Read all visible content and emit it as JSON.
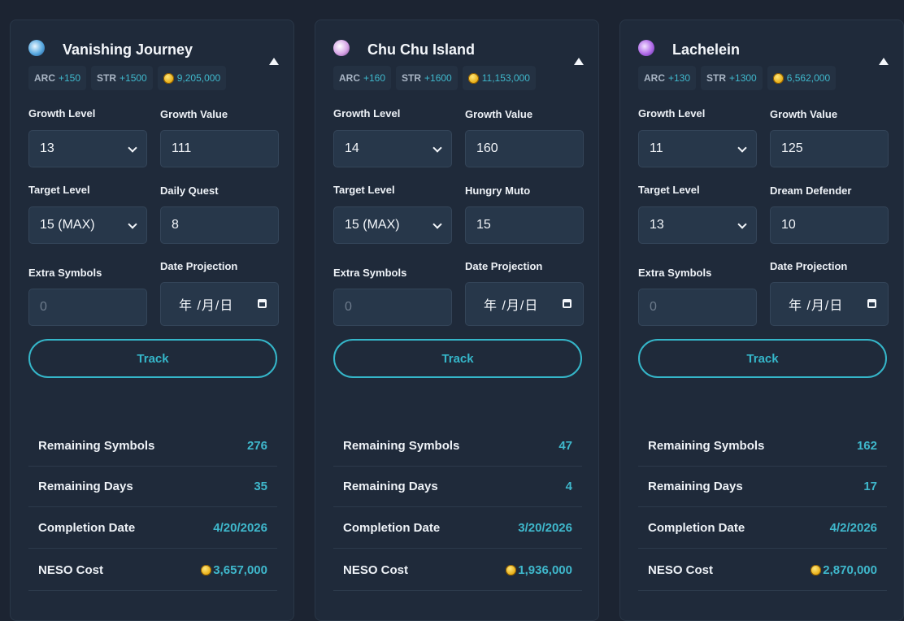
{
  "cards": [
    {
      "title": "Vanishing Journey",
      "icon": "vanishing-journey-symbol-icon",
      "arc_label": "ARC",
      "arc_value": "+150",
      "str_label": "STR",
      "str_value": "+1500",
      "meso_cost": "9,205,000",
      "growth_level_label": "Growth Level",
      "growth_level": "13",
      "growth_value_label": "Growth Value",
      "growth_value": "111",
      "target_level_label": "Target Level",
      "target_level": "15 (MAX)",
      "daily_label": "Daily Quest",
      "daily_value": "8",
      "extra_label": "Extra Symbols",
      "extra_placeholder": "0",
      "date_label": "Date Projection",
      "date_value": "年 /月/日",
      "track_label": "Track",
      "stats": [
        {
          "label": "Remaining Symbols",
          "value": "276"
        },
        {
          "label": "Remaining Days",
          "value": "35"
        },
        {
          "label": "Completion Date",
          "value": "4/20/2026"
        },
        {
          "label": "NESO Cost",
          "value": "3,657,000"
        }
      ]
    },
    {
      "title": "Chu Chu Island",
      "icon": "chu-chu-island-symbol-icon",
      "arc_label": "ARC",
      "arc_value": "+160",
      "str_label": "STR",
      "str_value": "+1600",
      "meso_cost": "11,153,000",
      "growth_level_label": "Growth Level",
      "growth_level": "14",
      "growth_value_label": "Growth Value",
      "growth_value": "160",
      "target_level_label": "Target Level",
      "target_level": "15 (MAX)",
      "daily_label": "Hungry Muto",
      "daily_value": "15",
      "extra_label": "Extra Symbols",
      "extra_placeholder": "0",
      "date_label": "Date Projection",
      "date_value": "年 /月/日",
      "track_label": "Track",
      "stats": [
        {
          "label": "Remaining Symbols",
          "value": "47"
        },
        {
          "label": "Remaining Days",
          "value": "4"
        },
        {
          "label": "Completion Date",
          "value": "3/20/2026"
        },
        {
          "label": "NESO Cost",
          "value": "1,936,000"
        }
      ]
    },
    {
      "title": "Lachelein",
      "icon": "lachelein-symbol-icon",
      "arc_label": "ARC",
      "arc_value": "+130",
      "str_label": "STR",
      "str_value": "+1300",
      "meso_cost": "6,562,000",
      "growth_level_label": "Growth Level",
      "growth_level": "11",
      "growth_value_label": "Growth Value",
      "growth_value": "125",
      "target_level_label": "Target Level",
      "target_level": "13",
      "daily_label": "Dream Defender",
      "daily_value": "10",
      "extra_label": "Extra Symbols",
      "extra_placeholder": "0",
      "date_label": "Date Projection",
      "date_value": "年 /月/日",
      "track_label": "Track",
      "stats": [
        {
          "label": "Remaining Symbols",
          "value": "162"
        },
        {
          "label": "Remaining Days",
          "value": "17"
        },
        {
          "label": "Completion Date",
          "value": "4/2/2026"
        },
        {
          "label": "NESO Cost",
          "value": "2,870,000"
        }
      ]
    }
  ],
  "colors": {
    "background": "#1c2432",
    "card": "#1f2a3a",
    "accent": "#35b6c9",
    "input": "#27374a"
  }
}
